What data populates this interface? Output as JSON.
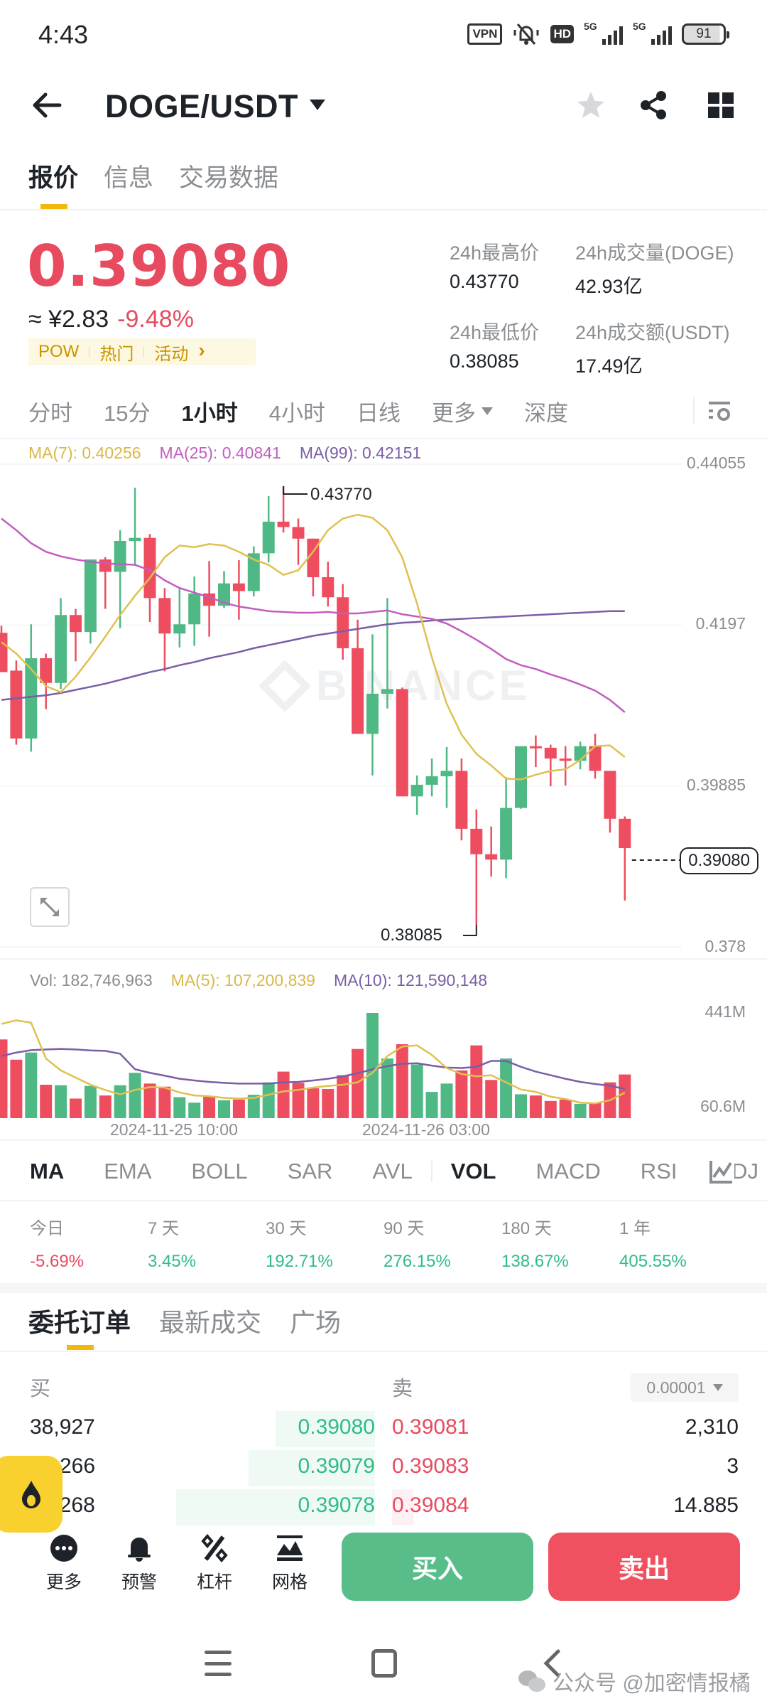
{
  "status_bar": {
    "time": "4:43",
    "icons": [
      "vpn-icon",
      "mute-icon",
      "hd-icon",
      "5g-signal-icon",
      "5g-signal-icon",
      "battery-icon"
    ],
    "vpn": "VPN",
    "hd": "HD",
    "net1": "5G",
    "net2": "5G",
    "battery": "91"
  },
  "header": {
    "title": "DOGE/USDT",
    "icons": [
      "back-arrow-icon",
      "star-icon",
      "share-icon",
      "grid-icon"
    ]
  },
  "page_tabs": [
    {
      "label": "报价",
      "active": true
    },
    {
      "label": "信息",
      "active": false
    },
    {
      "label": "交易数据",
      "active": false
    }
  ],
  "price": {
    "last": "0.39080",
    "fiat": "≈ ¥2.83",
    "change": "-9.48%",
    "tags": [
      "POW",
      "热门",
      "活动"
    ],
    "tags_arrow": "›"
  },
  "stats": {
    "high_label": "24h最高价",
    "high_value": "0.43770",
    "vol_label": "24h成交量(DOGE)",
    "vol_value": "42.93亿",
    "low_label": "24h最低价",
    "low_value": "0.38085",
    "turnover_label": "24h成交额(USDT)",
    "turnover_value": "17.49亿"
  },
  "timeframes": [
    {
      "label": "分时",
      "active": false
    },
    {
      "label": "15分",
      "active": false
    },
    {
      "label": "1小时",
      "active": true
    },
    {
      "label": "4小时",
      "active": false
    },
    {
      "label": "日线",
      "active": false
    },
    {
      "label": "更多",
      "active": false,
      "dropdown": true
    },
    {
      "label": "深度",
      "active": false
    }
  ],
  "ma_legend": {
    "ma7": "MA(7): 0.40256",
    "ma25": "MA(25): 0.40841",
    "ma99": "MA(99): 0.42151"
  },
  "watermark": "BINANCE",
  "vol_legend": {
    "vol": "Vol: 182,746,963",
    "ma5": "MA(5): 107,200,839",
    "ma10": "MA(10): 121,590,148"
  },
  "indicator_tabs": [
    {
      "label": "MA",
      "active": true
    },
    {
      "label": "EMA",
      "active": false
    },
    {
      "label": "BOLL",
      "active": false
    },
    {
      "label": "SAR",
      "active": false
    },
    {
      "label": "AVL",
      "active": false
    },
    {
      "label": "VOL",
      "active": true
    },
    {
      "label": "MACD",
      "active": false
    },
    {
      "label": "RSI",
      "active": false
    },
    {
      "label": "KDJ",
      "active": false
    }
  ],
  "periods": [
    {
      "label": "今日",
      "value": "-5.69%",
      "dir": "down"
    },
    {
      "label": "7 天",
      "value": "3.45%",
      "dir": "up"
    },
    {
      "label": "30 天",
      "value": "192.71%",
      "dir": "up"
    },
    {
      "label": "90 天",
      "value": "276.15%",
      "dir": "up"
    },
    {
      "label": "180 天",
      "value": "138.67%",
      "dir": "up"
    },
    {
      "label": "1 年",
      "value": "405.55%",
      "dir": "up"
    }
  ],
  "orderbook": {
    "tabs": [
      {
        "label": "委托订单",
        "active": true
      },
      {
        "label": "最新成交",
        "active": false
      },
      {
        "label": "广场",
        "active": false
      }
    ],
    "buy_header": "买",
    "sell_header": "卖",
    "precision": "0.00001",
    "rows": [
      {
        "buy_qty": "38,927",
        "buy_price": "0.39080",
        "sell_price": "0.39081",
        "sell_qty": "2,310",
        "buy_depth": 0.28,
        "sell_depth": 0.0
      },
      {
        "buy_qty": "266",
        "buy_price": "0.39079",
        "sell_price": "0.39083",
        "sell_qty": "3",
        "buy_depth": 0.6,
        "sell_depth": 0.0
      },
      {
        "buy_qty": "30.268",
        "buy_price": "0.39078",
        "sell_price": "0.39084",
        "sell_qty": "14.885",
        "buy_depth": 0.78,
        "sell_depth": 0.05
      }
    ]
  },
  "actions": [
    {
      "label": "更多",
      "icon": "more-icon"
    },
    {
      "label": "预警",
      "icon": "bell-icon"
    },
    {
      "label": "杠杆",
      "icon": "leverage-icon"
    },
    {
      "label": "网格",
      "icon": "grid-trading-icon"
    }
  ],
  "buy_label": "买入",
  "sell_label": "卖出",
  "footer_watermark": "公众号 @加密情报橘",
  "colors": {
    "up": "#2ebd85",
    "down": "#e84a5f",
    "candle_up": "#4fb985",
    "candle_down": "#ee4d5f",
    "accent": "#f0b90b",
    "ma7": "#e0c050",
    "ma25": "#c05ec0",
    "ma99": "#7a5ea6",
    "text": "#1e2329",
    "muted": "#8a8d91"
  },
  "chart_data": {
    "type": "candlestick",
    "title": "DOGE/USDT 1小时",
    "interval": "1h",
    "y_axis": {
      "ticks": [
        0.44055,
        0.4197,
        0.39885,
        0.378
      ],
      "range": [
        0.378,
        0.44055
      ],
      "position": "right"
    },
    "x_axis": {
      "ticks": [
        "2024-11-25 10:00",
        "2024-11-26 03:00"
      ]
    },
    "last_price": 0.3908,
    "annotations": [
      {
        "label": "0.43770",
        "type": "high"
      },
      {
        "label": "0.38085",
        "type": "low"
      }
    ],
    "candles": [
      {
        "o": 0.4187,
        "h": 0.4196,
        "l": 0.4136,
        "c": 0.4136
      },
      {
        "o": 0.4138,
        "h": 0.4151,
        "l": 0.4042,
        "c": 0.405
      },
      {
        "o": 0.405,
        "h": 0.4198,
        "l": 0.4033,
        "c": 0.4154
      },
      {
        "o": 0.4154,
        "h": 0.416,
        "l": 0.4088,
        "c": 0.4122
      },
      {
        "o": 0.4122,
        "h": 0.4232,
        "l": 0.4114,
        "c": 0.421
      },
      {
        "o": 0.421,
        "h": 0.4218,
        "l": 0.415,
        "c": 0.4188
      },
      {
        "o": 0.4188,
        "h": 0.4282,
        "l": 0.4173,
        "c": 0.4282
      },
      {
        "o": 0.4282,
        "h": 0.4285,
        "l": 0.4218,
        "c": 0.4266
      },
      {
        "o": 0.4266,
        "h": 0.432,
        "l": 0.4193,
        "c": 0.4306
      },
      {
        "o": 0.4306,
        "h": 0.4375,
        "l": 0.4276,
        "c": 0.431
      },
      {
        "o": 0.431,
        "h": 0.4315,
        "l": 0.4201,
        "c": 0.4232
      },
      {
        "o": 0.4232,
        "h": 0.4245,
        "l": 0.4137,
        "c": 0.4186
      },
      {
        "o": 0.4186,
        "h": 0.4245,
        "l": 0.4168,
        "c": 0.4198
      },
      {
        "o": 0.4198,
        "h": 0.426,
        "l": 0.417,
        "c": 0.4238
      },
      {
        "o": 0.4238,
        "h": 0.428,
        "l": 0.4182,
        "c": 0.4222
      },
      {
        "o": 0.4222,
        "h": 0.4267,
        "l": 0.4219,
        "c": 0.4251
      },
      {
        "o": 0.4251,
        "h": 0.4281,
        "l": 0.4204,
        "c": 0.4241
      },
      {
        "o": 0.4241,
        "h": 0.4299,
        "l": 0.4234,
        "c": 0.429
      },
      {
        "o": 0.429,
        "h": 0.4364,
        "l": 0.4278,
        "c": 0.4331
      },
      {
        "o": 0.4331,
        "h": 0.4377,
        "l": 0.4317,
        "c": 0.4324
      },
      {
        "o": 0.4324,
        "h": 0.4335,
        "l": 0.4275,
        "c": 0.4309
      },
      {
        "o": 0.4309,
        "h": 0.4309,
        "l": 0.4234,
        "c": 0.4259
      },
      {
        "o": 0.4259,
        "h": 0.4279,
        "l": 0.4221,
        "c": 0.4233
      },
      {
        "o": 0.4233,
        "h": 0.425,
        "l": 0.4152,
        "c": 0.4167
      },
      {
        "o": 0.4167,
        "h": 0.4204,
        "l": 0.4082,
        "c": 0.4056
      },
      {
        "o": 0.4056,
        "h": 0.4185,
        "l": 0.4002,
        "c": 0.4108
      },
      {
        "o": 0.4108,
        "h": 0.4232,
        "l": 0.4089,
        "c": 0.4114
      },
      {
        "o": 0.4114,
        "h": 0.4116,
        "l": 0.4002,
        "c": 0.3975
      },
      {
        "o": 0.3975,
        "h": 0.4002,
        "l": 0.3951,
        "c": 0.399
      },
      {
        "o": 0.399,
        "h": 0.4024,
        "l": 0.3975,
        "c": 0.4001
      },
      {
        "o": 0.4001,
        "h": 0.4039,
        "l": 0.396,
        "c": 0.4008
      },
      {
        "o": 0.4008,
        "h": 0.4024,
        "l": 0.3918,
        "c": 0.3933
      },
      {
        "o": 0.3933,
        "h": 0.3958,
        "l": 0.38085,
        "c": 0.39
      },
      {
        "o": 0.39,
        "h": 0.3936,
        "l": 0.3871,
        "c": 0.3893
      },
      {
        "o": 0.3893,
        "h": 0.4,
        "l": 0.3869,
        "c": 0.396
      },
      {
        "o": 0.396,
        "h": 0.404,
        "l": 0.3959,
        "c": 0.404
      },
      {
        "o": 0.404,
        "h": 0.4054,
        "l": 0.4013,
        "c": 0.4038
      },
      {
        "o": 0.4038,
        "h": 0.4042,
        "l": 0.3988,
        "c": 0.4024
      },
      {
        "o": 0.4024,
        "h": 0.404,
        "l": 0.3989,
        "c": 0.4021
      },
      {
        "o": 0.4021,
        "h": 0.4046,
        "l": 0.401,
        "c": 0.404
      },
      {
        "o": 0.404,
        "h": 0.4056,
        "l": 0.3998,
        "c": 0.4008
      },
      {
        "o": 0.4008,
        "h": 0.4008,
        "l": 0.3928,
        "c": 0.3946
      },
      {
        "o": 0.3946,
        "h": 0.3949,
        "l": 0.384,
        "c": 0.3908
      }
    ],
    "ma7": [
      0.4175,
      0.416,
      0.414,
      0.4118,
      0.411,
      0.413,
      0.4155,
      0.4182,
      0.421,
      0.4235,
      0.4258,
      0.4285,
      0.43,
      0.4298,
      0.4302,
      0.43,
      0.4292,
      0.4282,
      0.4275,
      0.4262,
      0.4268,
      0.4292,
      0.432,
      0.4335,
      0.434,
      0.4336,
      0.432,
      0.4285,
      0.4225,
      0.4155,
      0.4095,
      0.4055,
      0.403,
      0.4015,
      0.3998,
      0.3997,
      0.4003,
      0.4008,
      0.401,
      0.4022,
      0.404,
      0.4041,
      0.4026
    ],
    "ma25": [
      0.4335,
      0.432,
      0.4303,
      0.4292,
      0.4286,
      0.4282,
      0.4279,
      0.4277,
      0.4276,
      0.4275,
      0.4268,
      0.4255,
      0.4245,
      0.4239,
      0.4233,
      0.4226,
      0.4221,
      0.4218,
      0.4215,
      0.4214,
      0.4213,
      0.4213,
      0.4214,
      0.4212,
      0.4212,
      0.4214,
      0.4216,
      0.4211,
      0.4208,
      0.4205,
      0.4199,
      0.4189,
      0.4178,
      0.4166,
      0.4153,
      0.4145,
      0.414,
      0.4133,
      0.4127,
      0.412,
      0.4112,
      0.41,
      0.4084
    ],
    "ma99": [
      0.41,
      0.4102,
      0.4104,
      0.4106,
      0.4109,
      0.4113,
      0.4117,
      0.4121,
      0.4126,
      0.4131,
      0.4136,
      0.414,
      0.4145,
      0.4149,
      0.4154,
      0.4158,
      0.4162,
      0.4167,
      0.4171,
      0.4175,
      0.4179,
      0.4183,
      0.4186,
      0.4189,
      0.4192,
      0.4195,
      0.4198,
      0.42,
      0.4201,
      0.4203,
      0.4204,
      0.4205,
      0.4206,
      0.4207,
      0.4208,
      0.4209,
      0.421,
      0.4211,
      0.4212,
      0.4213,
      0.4214,
      0.4215,
      0.4215
    ],
    "volume": {
      "y_ticks": [
        "441M",
        "60.6M"
      ],
      "range": [
        0,
        520
      ],
      "unit": "M",
      "bars": [
        {
          "v": 330,
          "dir": "down"
        },
        {
          "v": 245,
          "dir": "down"
        },
        {
          "v": 275,
          "dir": "up"
        },
        {
          "v": 140,
          "dir": "down"
        },
        {
          "v": 138,
          "dir": "up"
        },
        {
          "v": 82,
          "dir": "down"
        },
        {
          "v": 135,
          "dir": "up"
        },
        {
          "v": 95,
          "dir": "down"
        },
        {
          "v": 138,
          "dir": "up"
        },
        {
          "v": 190,
          "dir": "up"
        },
        {
          "v": 145,
          "dir": "down"
        },
        {
          "v": 132,
          "dir": "down"
        },
        {
          "v": 88,
          "dir": "up"
        },
        {
          "v": 65,
          "dir": "up"
        },
        {
          "v": 90,
          "dir": "down"
        },
        {
          "v": 75,
          "dir": "up"
        },
        {
          "v": 78,
          "dir": "down"
        },
        {
          "v": 98,
          "dir": "up"
        },
        {
          "v": 150,
          "dir": "up"
        },
        {
          "v": 195,
          "dir": "down"
        },
        {
          "v": 148,
          "dir": "down"
        },
        {
          "v": 125,
          "dir": "down"
        },
        {
          "v": 122,
          "dir": "down"
        },
        {
          "v": 180,
          "dir": "down"
        },
        {
          "v": 290,
          "dir": "down"
        },
        {
          "v": 441,
          "dir": "up"
        },
        {
          "v": 250,
          "dir": "up"
        },
        {
          "v": 310,
          "dir": "down"
        },
        {
          "v": 225,
          "dir": "up"
        },
        {
          "v": 110,
          "dir": "up"
        },
        {
          "v": 145,
          "dir": "up"
        },
        {
          "v": 200,
          "dir": "down"
        },
        {
          "v": 305,
          "dir": "down"
        },
        {
          "v": 160,
          "dir": "down"
        },
        {
          "v": 250,
          "dir": "up"
        },
        {
          "v": 100,
          "dir": "up"
        },
        {
          "v": 95,
          "dir": "down"
        },
        {
          "v": 72,
          "dir": "down"
        },
        {
          "v": 78,
          "dir": "down"
        },
        {
          "v": 60,
          "dir": "up"
        },
        {
          "v": 65,
          "dir": "down"
        },
        {
          "v": 150,
          "dir": "down"
        },
        {
          "v": 183,
          "dir": "down"
        }
      ],
      "ma5": [
        395,
        410,
        400,
        250,
        200,
        170,
        140,
        118,
        100,
        118,
        130,
        128,
        108,
        95,
        92,
        85,
        82,
        85,
        98,
        112,
        118,
        128,
        135,
        140,
        150,
        190,
        260,
        300,
        305,
        265,
        210,
        185,
        175,
        180,
        150,
        120,
        110,
        90,
        80,
        65,
        62,
        75,
        107
      ],
      "ma10": [
        260,
        275,
        285,
        288,
        290,
        288,
        284,
        282,
        270,
        205,
        190,
        178,
        165,
        158,
        152,
        148,
        145,
        145,
        145,
        150,
        152,
        158,
        165,
        175,
        188,
        205,
        218,
        228,
        230,
        220,
        212,
        210,
        215,
        240,
        240,
        215,
        195,
        180,
        165,
        152,
        143,
        136,
        122
      ]
    }
  }
}
